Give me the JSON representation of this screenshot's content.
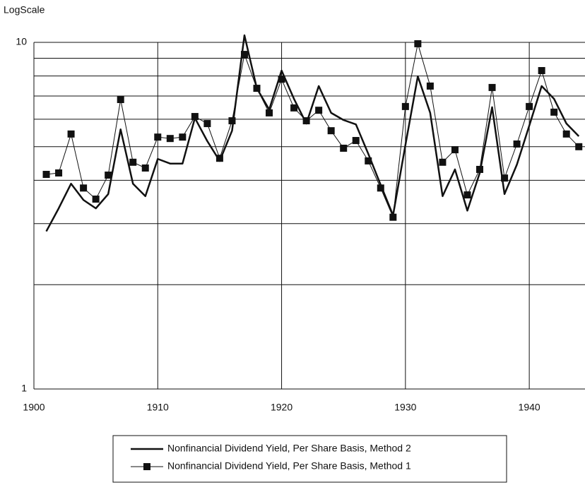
{
  "chart_data": {
    "type": "line",
    "y_label": "LogScale",
    "log_y": true,
    "grid": true,
    "ylim": [
      1,
      10
    ],
    "yticks": [
      1,
      10
    ],
    "y_grid": [
      2,
      3,
      4,
      5,
      6,
      7,
      8,
      9
    ],
    "xlim": [
      1900,
      1944.5
    ],
    "xticks": [
      1900,
      1910,
      1920,
      1930,
      1940
    ],
    "x": [
      1901,
      1902,
      1903,
      1904,
      1905,
      1906,
      1907,
      1908,
      1909,
      1910,
      1911,
      1912,
      1913,
      1914,
      1915,
      1916,
      1917,
      1918,
      1919,
      1920,
      1921,
      1922,
      1923,
      1924,
      1925,
      1926,
      1927,
      1928,
      1929,
      1930,
      1931,
      1932,
      1933,
      1934,
      1935,
      1936,
      1937,
      1938,
      1939,
      1940,
      1941,
      1942,
      1943,
      1944
    ],
    "legend": "bottom",
    "series": [
      {
        "name": "Nonfinancial Dividend Yield, Per Share Basis, Method 2",
        "color": "#111111",
        "marker": "none",
        "values": [
          2.85,
          3.32,
          3.91,
          3.51,
          3.32,
          3.65,
          5.61,
          3.91,
          3.6,
          4.61,
          4.47,
          4.47,
          6.05,
          5.19,
          4.55,
          5.56,
          10.48,
          7.37,
          6.4,
          8.29,
          6.87,
          5.83,
          7.48,
          6.26,
          5.97,
          5.8,
          4.77,
          3.88,
          3.17,
          5.06,
          7.98,
          6.26,
          3.6,
          4.3,
          3.27,
          4.2,
          6.5,
          3.65,
          4.44,
          5.75,
          7.48,
          6.87,
          5.83,
          5.36
        ]
      },
      {
        "name": "Nonfinancial Dividend Yield, Per Share Basis, Method 1",
        "color": "#111111",
        "marker": "square",
        "values": [
          4.16,
          4.2,
          5.44,
          3.8,
          3.53,
          4.14,
          6.84,
          4.51,
          4.34,
          5.33,
          5.28,
          5.33,
          6.11,
          5.83,
          4.63,
          5.94,
          9.23,
          7.37,
          6.26,
          7.83,
          6.47,
          5.94,
          6.37,
          5.56,
          4.95,
          5.21,
          4.55,
          3.8,
          3.13,
          6.53,
          9.91,
          7.48,
          4.51,
          4.9,
          3.63,
          4.3,
          7.41,
          4.06,
          5.09,
          6.53,
          8.29,
          6.29,
          5.44,
          5.0
        ]
      }
    ]
  }
}
